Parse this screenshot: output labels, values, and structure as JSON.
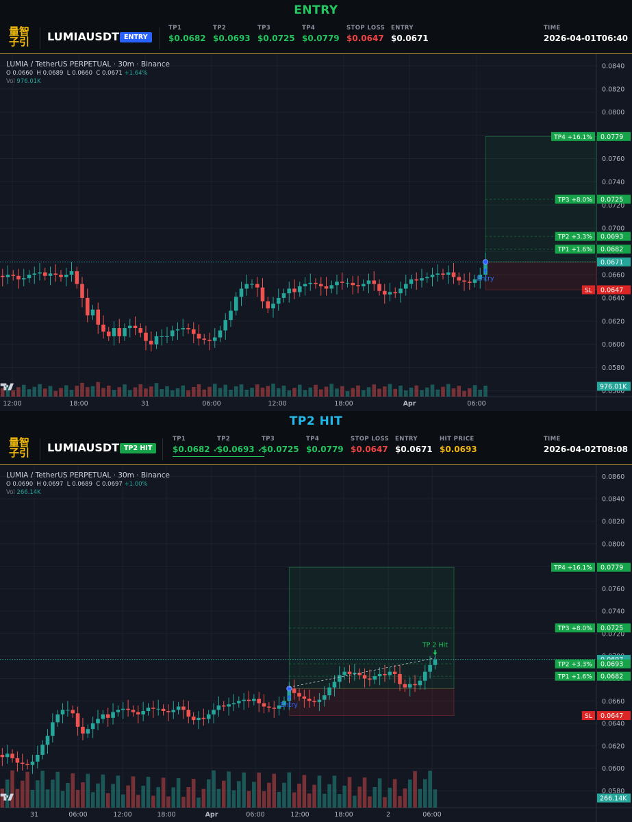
{
  "panels": [
    {
      "banner": {
        "text": "ENTRY",
        "color": "#22c55e"
      },
      "header": {
        "logo_line1": "量智",
        "logo_line2": "子引",
        "symbol": "LUMIAUSDT",
        "badge": "ENTRY",
        "badge_color": "#2962ff",
        "stats": [
          {
            "label": "TP1",
            "value": "$0.0682",
            "color": "#22c55e",
            "hit": false
          },
          {
            "label": "TP2",
            "value": "$0.0693",
            "color": "#22c55e",
            "hit": false
          },
          {
            "label": "TP3",
            "value": "$0.0725",
            "color": "#22c55e",
            "hit": false
          },
          {
            "label": "TP4",
            "value": "$0.0779",
            "color": "#22c55e",
            "hit": false
          },
          {
            "label": "STOP LOSS",
            "value": "$0.0647",
            "color": "#ef4444",
            "hit": false
          },
          {
            "label": "ENTRY",
            "value": "$0.0671",
            "color": "#ffffff",
            "hit": false
          }
        ],
        "time_label": "TIME",
        "time_value": "2026-04-01T06:40"
      },
      "chart": {
        "legend": "LUMIA / TetherUS PERPETUAL · 30m · Binance",
        "ohlc": {
          "o": "0.0660",
          "h": "0.0689",
          "l": "0.0660",
          "c": "0.0671",
          "chg": "+1.64%"
        },
        "vol_label": "Vol",
        "vol_value": "976.01K",
        "y_ticks": [
          "0.0840",
          "0.0820",
          "0.0800",
          "0.0780",
          "0.0760",
          "0.0740",
          "0.0720",
          "0.0700",
          "0.0680",
          "0.0660",
          "0.0640",
          "0.0620",
          "0.0600",
          "0.0580",
          "0.0560"
        ],
        "x_ticks": [
          "12:00",
          "18:00",
          "31",
          "06:00",
          "12:00",
          "18:00",
          "Apr",
          "06:00"
        ],
        "price_tags": [
          {
            "label": "TP4 +16.1%",
            "value": "0.0779",
            "color": "#16a34a"
          },
          {
            "label": "TP3 +8.0%",
            "value": "0.0725",
            "color": "#16a34a"
          },
          {
            "label": "TP2 +3.3%",
            "value": "0.0693",
            "color": "#16a34a"
          },
          {
            "label": "TP1 +1.6%",
            "value": "0.0682",
            "color": "#16a34a"
          },
          {
            "label": "",
            "value": "0.0671",
            "color": "#26a69a"
          },
          {
            "label": "SL",
            "value": "0.0647",
            "color": "#dc2626"
          }
        ],
        "vol_tag": "976.01K",
        "entry_marker": "Entry"
      }
    },
    {
      "banner": {
        "text": "TP2 HIT",
        "color": "#22b8e8"
      },
      "header": {
        "logo_line1": "量智",
        "logo_line2": "子引",
        "symbol": "LUMIAUSDT",
        "badge": "TP2 HIT",
        "badge_color": "#16a34a",
        "stats": [
          {
            "label": "TP1",
            "value": "$0.0682 ✓",
            "color": "#22c55e",
            "hit": true
          },
          {
            "label": "TP2",
            "value": "$0.0693 ✓",
            "color": "#22c55e",
            "hit": true
          },
          {
            "label": "TP3",
            "value": "$0.0725",
            "color": "#22c55e",
            "hit": false
          },
          {
            "label": "TP4",
            "value": "$0.0779",
            "color": "#22c55e",
            "hit": false
          },
          {
            "label": "STOP LOSS",
            "value": "$0.0647",
            "color": "#ef4444",
            "hit": false
          },
          {
            "label": "ENTRY",
            "value": "$0.0671",
            "color": "#ffffff",
            "hit": false
          },
          {
            "label": "HIT PRICE",
            "value": "$0.0693",
            "color": "#f0b90b",
            "hit": false
          }
        ],
        "time_label": "TIME",
        "time_value": "2026-04-02T08:08"
      },
      "chart": {
        "legend": "LUMIA / TetherUS PERPETUAL · 30m · Binance",
        "ohlc": {
          "o": "0.0690",
          "h": "0.0697",
          "l": "0.0689",
          "c": "0.0697",
          "chg": "+1.00%"
        },
        "vol_label": "Vol",
        "vol_value": "266.14K",
        "y_ticks": [
          "0.0860",
          "0.0840",
          "0.0820",
          "0.0800",
          "0.0780",
          "0.0760",
          "0.0740",
          "0.0720",
          "0.0700",
          "0.0680",
          "0.0660",
          "0.0640",
          "0.0620",
          "0.0600",
          "0.0580"
        ],
        "x_ticks": [
          "31",
          "06:00",
          "12:00",
          "18:00",
          "Apr",
          "06:00",
          "12:00",
          "18:00",
          "2",
          "06:00"
        ],
        "price_tags": [
          {
            "label": "TP4 +16.1%",
            "value": "0.0779",
            "color": "#16a34a"
          },
          {
            "label": "TP3 +8.0%",
            "value": "0.0725",
            "color": "#16a34a"
          },
          {
            "label": "",
            "value": "0.0697",
            "color": "#26a69a"
          },
          {
            "label": "TP2 +3.3%",
            "value": "0.0693",
            "color": "#16a34a"
          },
          {
            "label": "TP1 +1.6%",
            "value": "0.0682",
            "color": "#16a34a"
          },
          {
            "label": "SL",
            "value": "0.0647",
            "color": "#dc2626"
          }
        ],
        "vol_tag": "266.14K",
        "entry_marker": "Entry",
        "hit_marker": "TP 2 Hit"
      }
    }
  ],
  "chart_data": [
    {
      "type": "candlestick",
      "title": "LUMIA / TetherUS PERPETUAL · 30m · Binance",
      "ylim": [
        0.0555,
        0.085
      ],
      "x_ticks": [
        "12:00",
        "18:00",
        "31",
        "06:00",
        "12:00",
        "18:00",
        "Apr",
        "06:00"
      ],
      "levels": {
        "tp4": 0.0779,
        "tp3": 0.0725,
        "tp2": 0.0693,
        "tp1": 0.0682,
        "entry": 0.0671,
        "sl": 0.0647
      },
      "close": [
        0.0659,
        0.0658,
        0.066,
        0.0659,
        0.0656,
        0.0657,
        0.066,
        0.0661,
        0.0662,
        0.0659,
        0.0661,
        0.066,
        0.0658,
        0.066,
        0.0663,
        0.0652,
        0.064,
        0.0625,
        0.063,
        0.0617,
        0.0611,
        0.0607,
        0.0614,
        0.0607,
        0.0614,
        0.0616,
        0.0614,
        0.061,
        0.0603,
        0.06,
        0.0607,
        0.0607,
        0.0607,
        0.0612,
        0.0613,
        0.0614,
        0.0613,
        0.0609,
        0.0605,
        0.0604,
        0.0603,
        0.0606,
        0.0612,
        0.0621,
        0.0629,
        0.0641,
        0.0648,
        0.0652,
        0.0652,
        0.0649,
        0.0637,
        0.0631,
        0.0635,
        0.064,
        0.0644,
        0.0648,
        0.0645,
        0.065,
        0.0652,
        0.0653,
        0.0652,
        0.065,
        0.0648,
        0.0651,
        0.0654,
        0.0653,
        0.0653,
        0.0651,
        0.065,
        0.0652,
        0.0655,
        0.0652,
        0.0646,
        0.0643,
        0.0645,
        0.0644,
        0.0648,
        0.0652,
        0.0656,
        0.0655,
        0.0657,
        0.0658,
        0.066,
        0.0661,
        0.066,
        0.0662,
        0.0658,
        0.0655,
        0.0654,
        0.0653,
        0.0656,
        0.066,
        0.0671
      ],
      "volume_last": "976.01K"
    },
    {
      "type": "candlestick",
      "title": "LUMIA / TetherUS PERPETUAL · 30m · Binance",
      "ylim": [
        0.0565,
        0.087
      ],
      "x_ticks": [
        "31",
        "06:00",
        "12:00",
        "18:00",
        "Apr",
        "06:00",
        "12:00",
        "18:00",
        "2",
        "06:00"
      ],
      "levels": {
        "tp4": 0.0779,
        "tp3": 0.0725,
        "tp2": 0.0693,
        "tp1": 0.0682,
        "entry": 0.0671,
        "sl": 0.0647,
        "last": 0.0697
      },
      "close": [
        0.0612,
        0.061,
        0.0613,
        0.0609,
        0.0605,
        0.0604,
        0.0603,
        0.0606,
        0.0612,
        0.0621,
        0.0629,
        0.0641,
        0.0648,
        0.0652,
        0.0652,
        0.0649,
        0.0637,
        0.0631,
        0.0635,
        0.064,
        0.0644,
        0.0648,
        0.0645,
        0.065,
        0.0652,
        0.0653,
        0.0652,
        0.065,
        0.0648,
        0.0651,
        0.0654,
        0.0653,
        0.0653,
        0.0651,
        0.065,
        0.0652,
        0.0655,
        0.0652,
        0.0646,
        0.0643,
        0.0645,
        0.0644,
        0.0648,
        0.0652,
        0.0656,
        0.0655,
        0.0657,
        0.0658,
        0.066,
        0.0661,
        0.066,
        0.0662,
        0.0658,
        0.0655,
        0.0654,
        0.0653,
        0.0656,
        0.066,
        0.0671,
        0.0667,
        0.0664,
        0.0662,
        0.066,
        0.0659,
        0.0661,
        0.0665,
        0.0672,
        0.0677,
        0.0683,
        0.0686,
        0.0684,
        0.0685,
        0.0683,
        0.068,
        0.0679,
        0.0682,
        0.0684,
        0.0683,
        0.0686,
        0.0684,
        0.0675,
        0.0672,
        0.0675,
        0.0674,
        0.0678,
        0.0686,
        0.0692,
        0.0697
      ],
      "volume_last": "266.14K"
    }
  ]
}
